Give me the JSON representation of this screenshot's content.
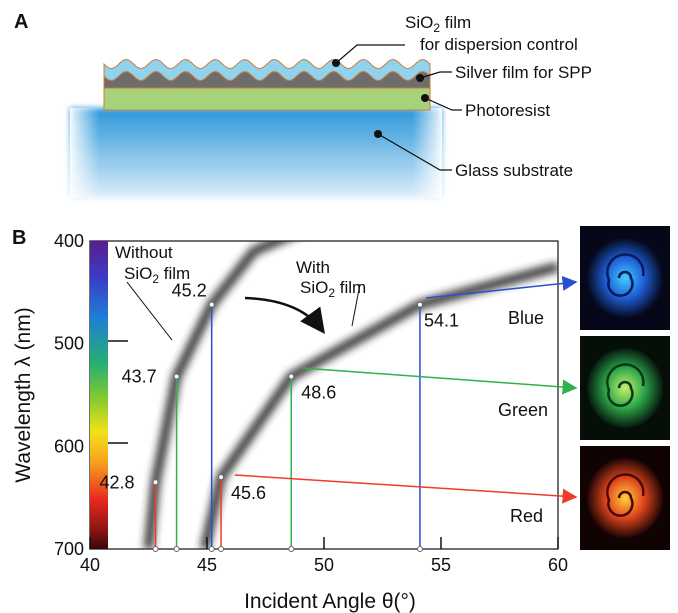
{
  "panel_a": {
    "letter": "A",
    "labels": {
      "sio2_line1": "SiO",
      "sio2_sub": "2",
      "sio2_line1_suffix": " film",
      "sio2_line2": "for dispersion control",
      "silver": "Silver film for SPP",
      "photoresist": "Photoresist",
      "glass": "Glass substrate"
    },
    "colors": {
      "sio2": "#8fd3ee",
      "silver": "#6d6d6d",
      "photoresist": "#a6d27a",
      "glass": "#1e90d8",
      "outline": "#d07a3a"
    }
  },
  "panel_b": {
    "letter": "B",
    "xlabel": "Incident Angle  θ(°)",
    "ylabel": "Wavelength λ (nm)",
    "annotations": {
      "without_l1": "Without",
      "without_l2a": "SiO",
      "without_l2b": "2",
      "without_l2c": " film",
      "with_l1": "With",
      "with_l2a": "SiO",
      "with_l2b": "2",
      "with_l2c": " film"
    },
    "color_labels": [
      "Blue",
      "Green",
      "Red"
    ],
    "arrow_colors": {
      "blue": "#2a4fd0",
      "green": "#2eb34a",
      "red": "#f03a2a"
    }
  },
  "chart_data": {
    "type": "line",
    "xlabel": "Incident Angle  θ(°)",
    "ylabel": "Wavelength λ (nm)",
    "xlim": [
      40,
      60
    ],
    "ylim": [
      700,
      400
    ],
    "xticks": [
      "40",
      "45",
      "50",
      "55",
      "60"
    ],
    "yticks": [
      "400",
      "500",
      "600",
      "700"
    ],
    "series": [
      {
        "x": [
          42.5,
          42.8,
          43.7,
          45.2,
          47.0,
          50.0
        ],
        "y": [
          700,
          635,
          532,
          462,
          410,
          380
        ]
      },
      {
        "x": [
          44.9,
          45.6,
          48.6,
          54.1,
          60.0
        ],
        "y": [
          700,
          630,
          532,
          462,
          425
        ]
      }
    ],
    "markers": [
      {
        "label": "45.2",
        "x": 45.2,
        "y": 462,
        "color": "blue"
      },
      {
        "label": "43.7",
        "x": 43.7,
        "y": 532,
        "color": "green"
      },
      {
        "label": "42.8",
        "x": 42.8,
        "y": 635,
        "color": "red"
      },
      {
        "label": "54.1",
        "x": 54.1,
        "y": 462,
        "color": "blue"
      },
      {
        "label": "48.6",
        "x": 48.6,
        "y": 532,
        "color": "green"
      },
      {
        "label": "45.6",
        "x": 45.6,
        "y": 630,
        "color": "red"
      }
    ]
  }
}
